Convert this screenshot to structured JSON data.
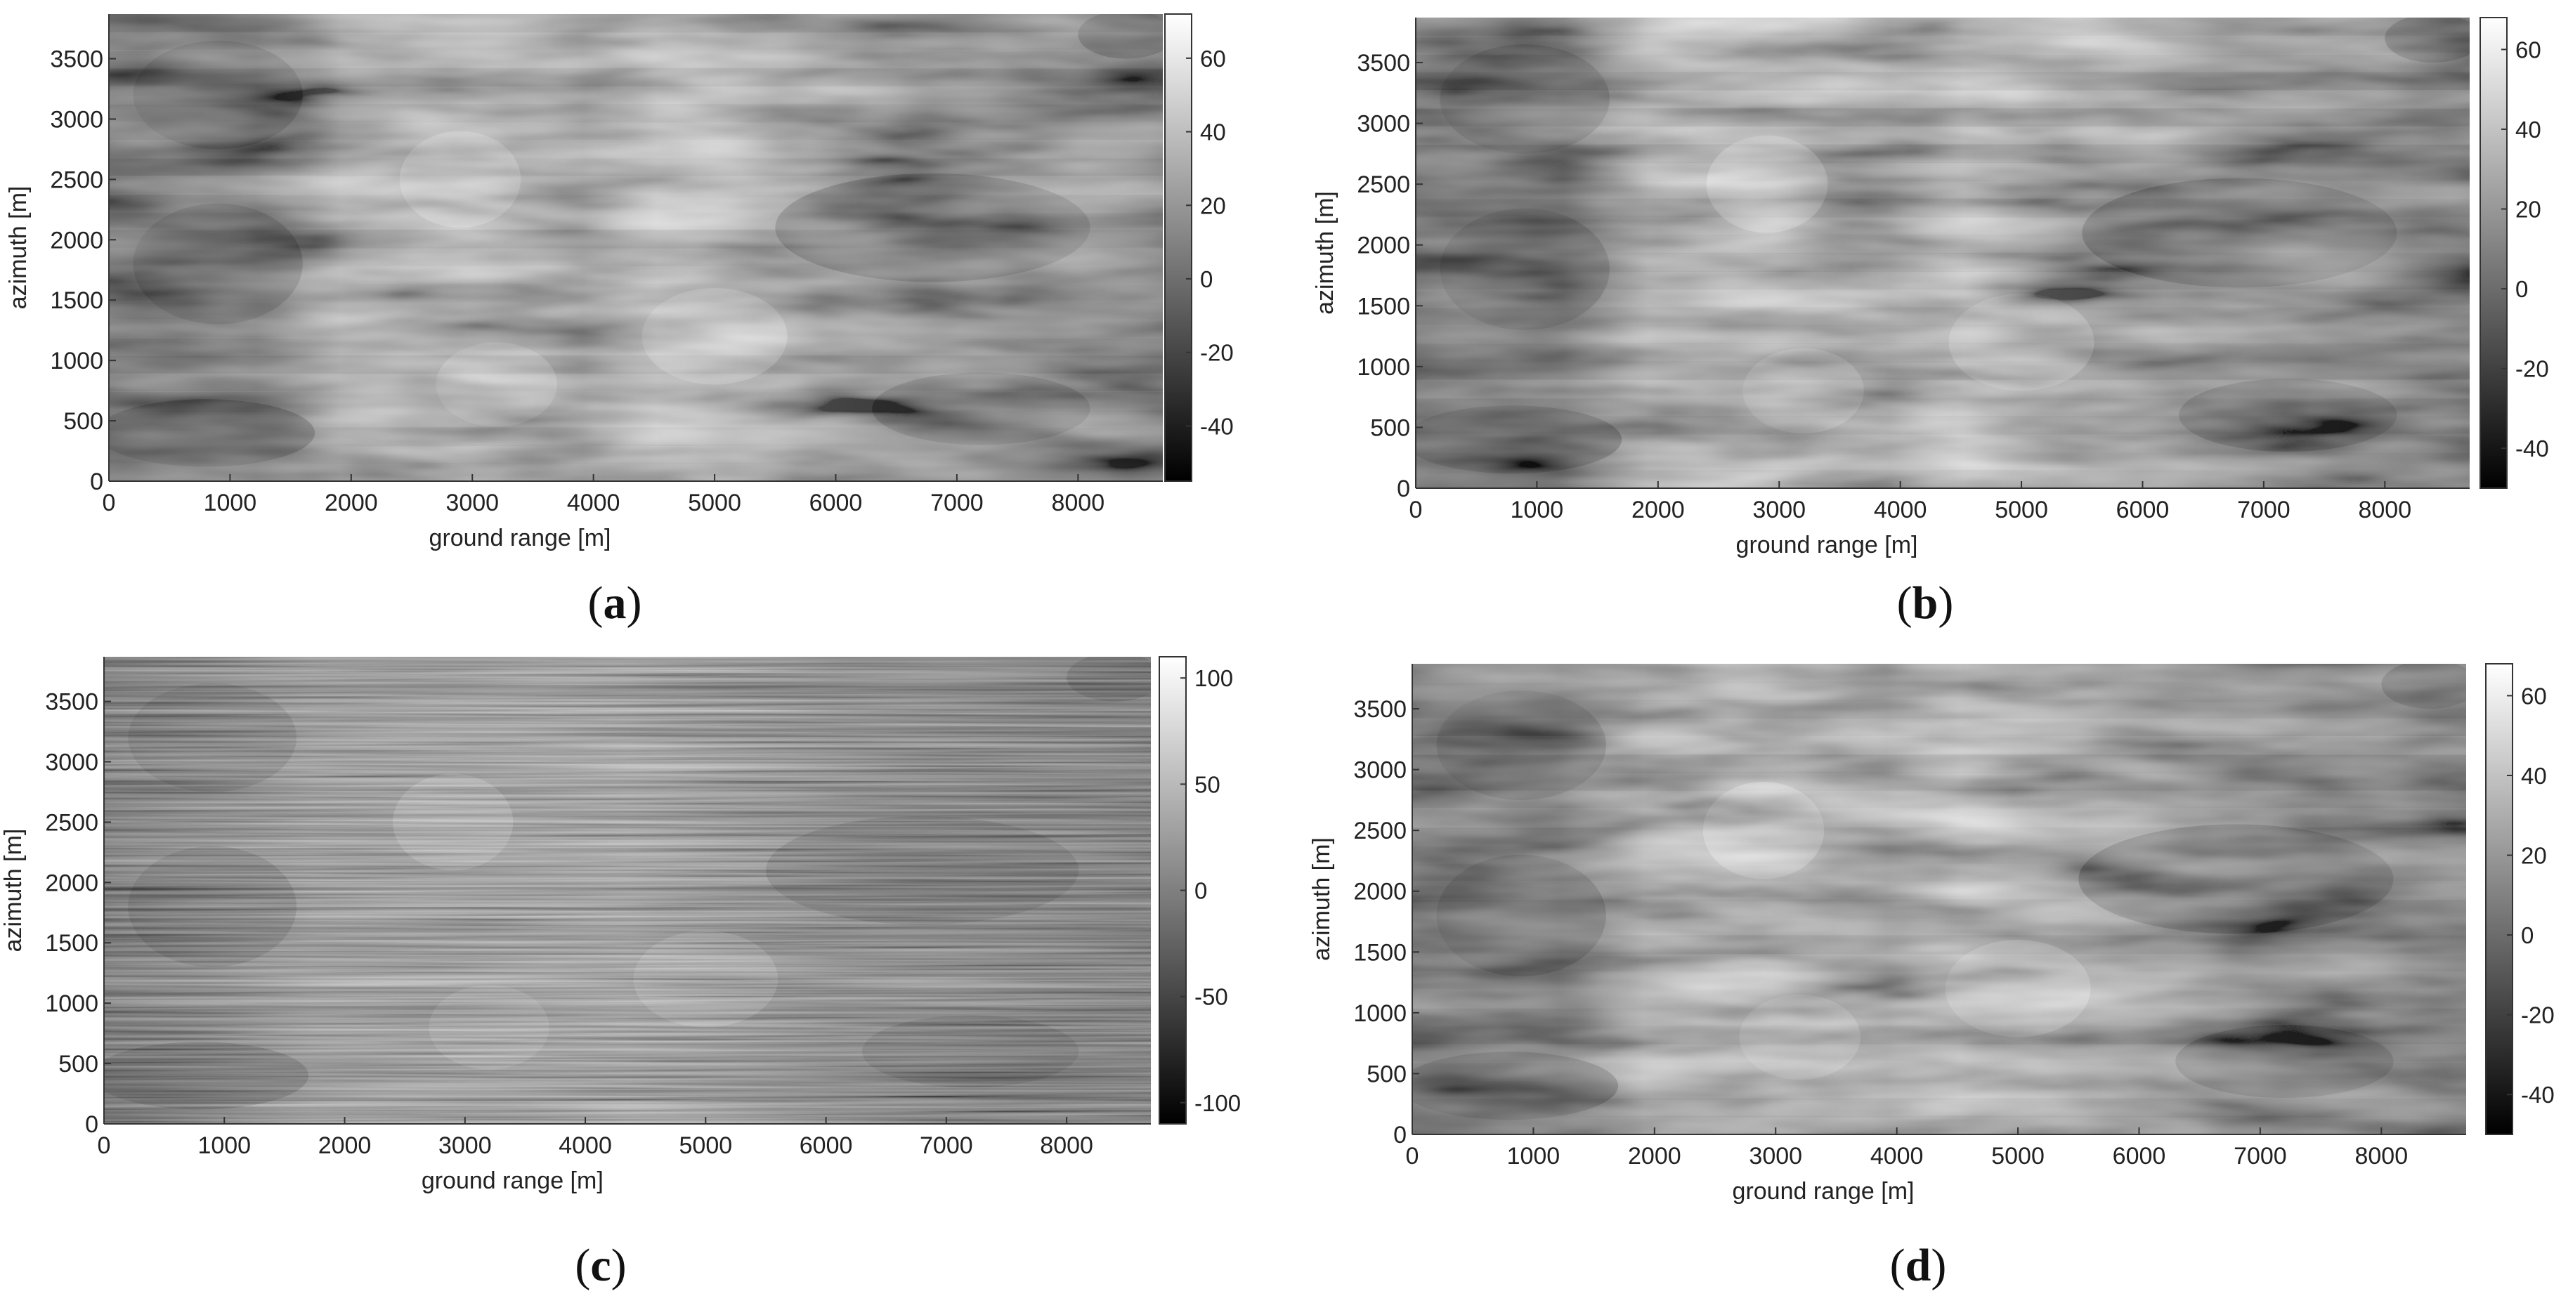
{
  "figure": {
    "panels": [
      {
        "id": "a",
        "caption_letter": "a",
        "colorbar_ticks": [
          "60",
          "40",
          "20",
          "0",
          "-20",
          "-40"
        ]
      },
      {
        "id": "b",
        "caption_letter": "b",
        "colorbar_ticks": [
          "60",
          "40",
          "20",
          "0",
          "-20",
          "-40"
        ]
      },
      {
        "id": "c",
        "caption_letter": "c",
        "colorbar_ticks": [
          "100",
          "50",
          "0",
          "-50",
          "-100"
        ]
      },
      {
        "id": "d",
        "caption_letter": "d",
        "colorbar_ticks": [
          "60",
          "40",
          "20",
          "0",
          "-20",
          "-40"
        ]
      }
    ],
    "axes": {
      "xlabel": "ground range [m]",
      "ylabel": "azimuth [m]",
      "xticks": [
        "0",
        "1000",
        "2000",
        "3000",
        "4000",
        "5000",
        "6000",
        "7000",
        "8000"
      ],
      "yticks": [
        "0",
        "500",
        "1000",
        "1500",
        "2000",
        "2500",
        "3000",
        "3500"
      ]
    }
  },
  "chart_data": [
    {
      "type": "heatmap",
      "panel": "a",
      "xlabel": "ground range [m]",
      "ylabel": "azimuth [m]",
      "xlim": [
        0,
        8700
      ],
      "ylim": [
        0,
        3870
      ],
      "colorbar": {
        "range": [
          -55,
          72
        ],
        "ticks": [
          60,
          40,
          20,
          0,
          -20,
          -40
        ],
        "colormap": "gray"
      },
      "grid": false
    },
    {
      "type": "heatmap",
      "panel": "b",
      "xlabel": "ground range [m]",
      "ylabel": "azimuth [m]",
      "xlim": [
        0,
        8700
      ],
      "ylim": [
        0,
        3870
      ],
      "colorbar": {
        "range": [
          -50,
          68
        ],
        "ticks": [
          60,
          40,
          20,
          0,
          -20,
          -40
        ],
        "colormap": "gray"
      },
      "grid": false
    },
    {
      "type": "heatmap",
      "panel": "c",
      "xlabel": "ground range [m]",
      "ylabel": "azimuth [m]",
      "xlim": [
        0,
        8700
      ],
      "ylim": [
        0,
        3870
      ],
      "colorbar": {
        "range": [
          -110,
          110
        ],
        "ticks": [
          100,
          50,
          0,
          -50,
          -100
        ],
        "colormap": "gray"
      },
      "grid": false
    },
    {
      "type": "heatmap",
      "panel": "d",
      "xlabel": "ground range [m]",
      "ylabel": "azimuth [m]",
      "xlim": [
        0,
        8700
      ],
      "ylim": [
        0,
        3870
      ],
      "colorbar": {
        "range": [
          -50,
          68
        ],
        "ticks": [
          60,
          40,
          20,
          0,
          -20,
          -40
        ],
        "colormap": "gray"
      },
      "grid": false
    }
  ]
}
